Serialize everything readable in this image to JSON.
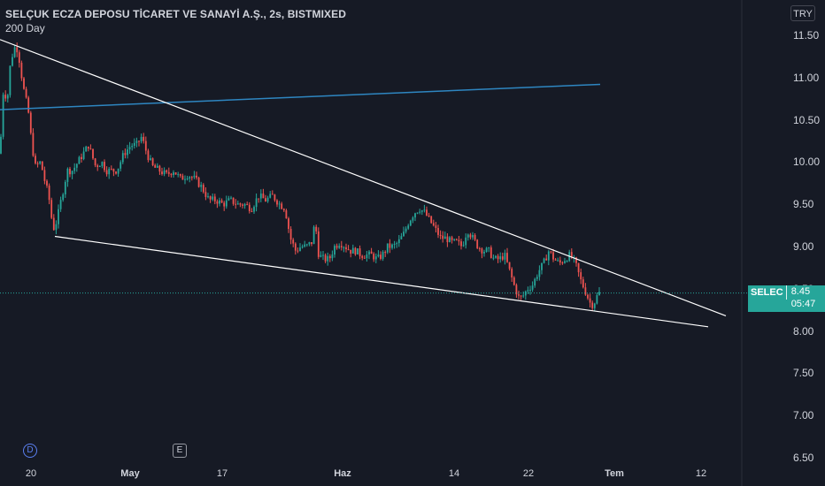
{
  "header": {
    "title": "SELÇUK ECZA DEPOSU TİCARET VE SANAYİ A.Ş., 2s, BISTMIXED",
    "indicator": "200 Day",
    "currency": "TRY"
  },
  "last_price": {
    "symbol": "SELEC",
    "value": "8.45",
    "countdown": "05:47"
  },
  "markers": {
    "dividend": "D",
    "earnings": "E"
  },
  "colors": {
    "background": "#161a25",
    "up": "#26a69a",
    "down": "#ef5350",
    "ma": "#2e86c1",
    "trendline": "#ffffff"
  },
  "chart_data": {
    "type": "candlestick",
    "title": "SELÇUK ECZA DEPOSU TİCARET VE SANAYİ A.Ş., 2s, BISTMIXED",
    "x_tick_labels": [
      "20",
      "May",
      "17",
      "Haz",
      "14",
      "22",
      "Tem",
      "12"
    ],
    "y_tick_labels": [
      "11.50",
      "11.00",
      "10.50",
      "10.00",
      "9.50",
      "9.00",
      "8.50",
      "8.00",
      "7.50",
      "7.00",
      "6.50"
    ],
    "ylim": [
      6.5,
      11.5
    ],
    "grid": false,
    "price_path": [
      [
        0,
        10.1
      ],
      [
        4,
        10.9
      ],
      [
        8,
        10.7
      ],
      [
        12,
        11.2
      ],
      [
        18,
        11.4
      ],
      [
        22,
        11.2
      ],
      [
        26,
        10.9
      ],
      [
        32,
        10.6
      ],
      [
        36,
        10.2
      ],
      [
        40,
        9.95
      ],
      [
        46,
        10.0
      ],
      [
        50,
        9.8
      ],
      [
        55,
        9.6
      ],
      [
        60,
        9.2
      ],
      [
        64,
        9.3
      ],
      [
        70,
        9.6
      ],
      [
        76,
        9.9
      ],
      [
        82,
        9.9
      ],
      [
        88,
        10.0
      ],
      [
        94,
        10.1
      ],
      [
        100,
        10.2
      ],
      [
        108,
        9.95
      ],
      [
        115,
        10.0
      ],
      [
        120,
        9.9
      ],
      [
        126,
        9.9
      ],
      [
        132,
        9.9
      ],
      [
        140,
        10.1
      ],
      [
        148,
        10.2
      ],
      [
        154,
        10.2
      ],
      [
        160,
        10.3
      ],
      [
        166,
        10.1
      ],
      [
        172,
        9.95
      ],
      [
        180,
        9.9
      ],
      [
        188,
        9.85
      ],
      [
        196,
        9.9
      ],
      [
        204,
        9.8
      ],
      [
        212,
        9.85
      ],
      [
        220,
        9.8
      ],
      [
        228,
        9.7
      ],
      [
        236,
        9.55
      ],
      [
        244,
        9.55
      ],
      [
        252,
        9.5
      ],
      [
        260,
        9.55
      ],
      [
        268,
        9.5
      ],
      [
        276,
        9.5
      ],
      [
        284,
        9.45
      ],
      [
        292,
        9.6
      ],
      [
        300,
        9.55
      ],
      [
        308,
        9.6
      ],
      [
        316,
        9.5
      ],
      [
        322,
        9.45
      ],
      [
        328,
        9.1
      ],
      [
        334,
        8.95
      ],
      [
        340,
        9.0
      ],
      [
        346,
        9.0
      ],
      [
        352,
        9.05
      ],
      [
        356,
        9.3
      ],
      [
        360,
        8.9
      ],
      [
        366,
        8.85
      ],
      [
        372,
        8.85
      ],
      [
        378,
        9.0
      ],
      [
        384,
        9.05
      ],
      [
        390,
        9.0
      ],
      [
        396,
        8.95
      ],
      [
        402,
        8.95
      ],
      [
        408,
        8.9
      ],
      [
        414,
        8.9
      ],
      [
        420,
        8.9
      ],
      [
        426,
        8.85
      ],
      [
        432,
        8.9
      ],
      [
        438,
        9.0
      ],
      [
        444,
        9.0
      ],
      [
        450,
        9.05
      ],
      [
        456,
        9.15
      ],
      [
        462,
        9.3
      ],
      [
        468,
        9.4
      ],
      [
        474,
        9.45
      ],
      [
        480,
        9.4
      ],
      [
        486,
        9.3
      ],
      [
        492,
        9.2
      ],
      [
        498,
        9.1
      ],
      [
        504,
        9.1
      ],
      [
        510,
        9.05
      ],
      [
        516,
        9.05
      ],
      [
        522,
        9.0
      ],
      [
        528,
        9.2
      ],
      [
        534,
        9.1
      ],
      [
        540,
        9.0
      ],
      [
        546,
        8.95
      ],
      [
        552,
        8.95
      ],
      [
        558,
        8.85
      ],
      [
        564,
        8.85
      ],
      [
        570,
        8.9
      ],
      [
        576,
        8.7
      ],
      [
        582,
        8.5
      ],
      [
        586,
        8.4
      ],
      [
        590,
        8.4
      ],
      [
        596,
        8.5
      ],
      [
        602,
        8.55
      ],
      [
        608,
        8.7
      ],
      [
        614,
        8.8
      ],
      [
        620,
        8.95
      ],
      [
        626,
        8.85
      ],
      [
        632,
        8.8
      ],
      [
        638,
        8.85
      ],
      [
        644,
        8.9
      ],
      [
        650,
        8.8
      ],
      [
        656,
        8.6
      ],
      [
        662,
        8.45
      ],
      [
        668,
        8.3
      ],
      [
        672,
        8.35
      ],
      [
        676,
        8.45
      ],
      [
        678,
        8.45
      ]
    ],
    "moving_average": {
      "name": "200 Day",
      "start": [
        0,
        10.62
      ],
      "end": [
        678,
        10.92
      ]
    },
    "trendlines": [
      {
        "from": [
          0,
          11.45
        ],
        "to": [
          820,
          8.18
        ]
      },
      {
        "from": [
          62,
          9.12
        ],
        "to": [
          800,
          8.05
        ]
      }
    ],
    "last_value": 8.45
  }
}
